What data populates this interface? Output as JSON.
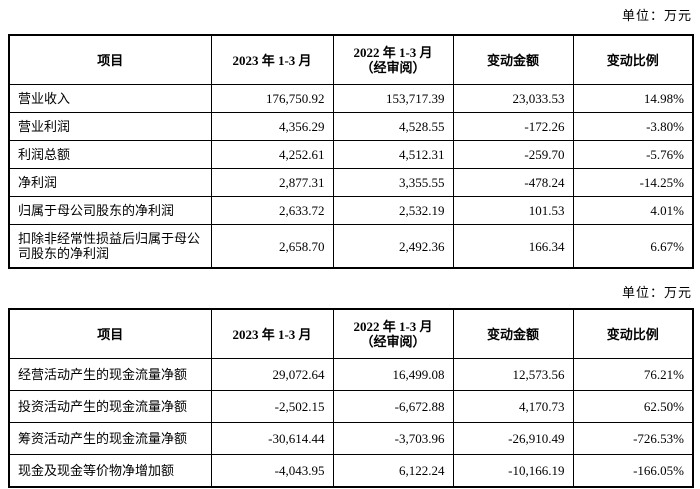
{
  "page": {
    "unit_label_top": "单位：万元",
    "unit_label_bottom": "单位：万元"
  },
  "table1": {
    "headers": {
      "item": "项目",
      "period_2023": "2023 年 1-3 月",
      "period_2022_line1": "2022 年 1-3 月",
      "period_2022_line2": "（经审阅）",
      "change_amount": "变动金额",
      "change_ratio": "变动比例"
    },
    "rows": [
      [
        "营业收入",
        "176,750.92",
        "153,717.39",
        "23,033.53",
        "14.98%"
      ],
      [
        "营业利润",
        "4,356.29",
        "4,528.55",
        "-172.26",
        "-3.80%"
      ],
      [
        "利润总额",
        "4,252.61",
        "4,512.31",
        "-259.70",
        "-5.76%"
      ],
      [
        "净利润",
        "2,877.31",
        "3,355.55",
        "-478.24",
        "-14.25%"
      ],
      [
        "归属于母公司股东的净利润",
        "2,633.72",
        "2,532.19",
        "101.53",
        "4.01%"
      ],
      [
        "扣除非经常性损益后归属于母公司股东的净利润",
        "2,658.70",
        "2,492.36",
        "166.34",
        "6.67%"
      ]
    ]
  },
  "table2": {
    "headers": {
      "item": "项目",
      "period_2023": "2023 年 1-3 月",
      "period_2022_line1": "2022 年 1-3 月",
      "period_2022_line2": "（经审阅）",
      "change_amount": "变动金额",
      "change_ratio": "变动比例"
    },
    "rows": [
      [
        "经营活动产生的现金流量净额",
        "29,072.64",
        "16,499.08",
        "12,573.56",
        "76.21%"
      ],
      [
        "投资活动产生的现金流量净额",
        "-2,502.15",
        "-6,672.88",
        "4,170.73",
        "62.50%"
      ],
      [
        "筹资活动产生的现金流量净额",
        "-30,614.44",
        "-3,703.96",
        "-26,910.49",
        "-726.53%"
      ],
      [
        "现金及现金等价物净增加额",
        "-4,043.95",
        "6,122.24",
        "-10,166.19",
        "-166.05%"
      ]
    ]
  }
}
